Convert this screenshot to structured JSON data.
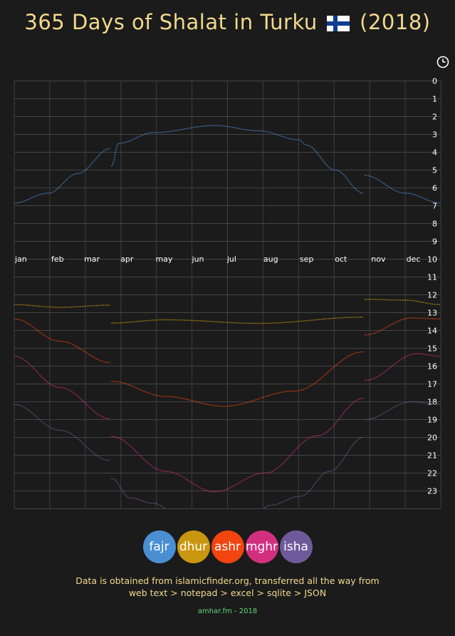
{
  "page": {
    "title_prefix": "365 Days of Shalat in Turku",
    "title_suffix": "(2018)",
    "flag_icon": "finland-flag-icon",
    "clock_icon": "clock-icon",
    "note_line1": "Data is obtained from islamicfinder.org, transferred all the way from",
    "note_line2": "web text > notepad > excel > sqlite > JSON",
    "footer": "amhar.fm - 2018"
  },
  "legend": [
    {
      "label": "fajr",
      "color": "#4a8fd4"
    },
    {
      "label": "dhur",
      "color": "#c9960f"
    },
    {
      "label": "ashr",
      "color": "#f2450f"
    },
    {
      "label": "mghr",
      "color": "#d22f80"
    },
    {
      "label": "isha",
      "color": "#6e5a9a"
    }
  ],
  "chart_data": {
    "type": "line",
    "title": "365 Days of Shalat in Turku (2018)",
    "x_unit": "day of year",
    "xlim": [
      1,
      365
    ],
    "ylim": [
      0,
      24
    ],
    "y_direction": "0 at top, 23 at bottom",
    "y_ticks": [
      0,
      1,
      2,
      3,
      4,
      5,
      6,
      7,
      8,
      9,
      10,
      11,
      12,
      13,
      14,
      15,
      16,
      17,
      18,
      19,
      20,
      21,
      22,
      23
    ],
    "month_labels": [
      "jan",
      "feb",
      "mar",
      "apr",
      "may",
      "jun",
      "jul",
      "aug",
      "sep",
      "oct",
      "nov",
      "dec"
    ],
    "month_label_days": [
      1,
      32,
      60,
      91,
      121,
      152,
      182,
      213,
      244,
      274,
      305,
      335
    ],
    "dst_shifts": [
      {
        "from_day": 84,
        "offset_hours": 0
      },
      {
        "to_day": 300,
        "offset_hours": 0
      }
    ],
    "grid": true,
    "legend_position": "bottom-center",
    "series": [
      {
        "name": "fajr",
        "color": "#4a8fd4",
        "points": [
          [
            1,
            6.85
          ],
          [
            30,
            6.3
          ],
          [
            55,
            5.2
          ],
          [
            83,
            3.8
          ],
          [
            84,
            4.8
          ],
          [
            90,
            3.5
          ],
          [
            120,
            2.9
          ],
          [
            172,
            2.5
          ],
          [
            210,
            2.8
          ],
          [
            244,
            3.3
          ],
          [
            250,
            3.6
          ],
          [
            275,
            5.0
          ],
          [
            299,
            6.3
          ],
          [
            300,
            5.3
          ],
          [
            335,
            6.3
          ],
          [
            365,
            6.85
          ]
        ]
      },
      {
        "name": "dhur",
        "color": "#c9960f",
        "points": [
          [
            1,
            12.55
          ],
          [
            40,
            12.7
          ],
          [
            83,
            12.58
          ],
          [
            84,
            13.58
          ],
          [
            130,
            13.4
          ],
          [
            210,
            13.6
          ],
          [
            299,
            13.25
          ],
          [
            300,
            12.25
          ],
          [
            335,
            12.3
          ],
          [
            365,
            12.55
          ]
        ]
      },
      {
        "name": "ashr",
        "color": "#f2450f",
        "points": [
          [
            1,
            13.35
          ],
          [
            40,
            14.6
          ],
          [
            83,
            15.8
          ],
          [
            84,
            16.85
          ],
          [
            130,
            17.7
          ],
          [
            180,
            18.25
          ],
          [
            240,
            17.4
          ],
          [
            299,
            15.2
          ],
          [
            300,
            14.25
          ],
          [
            340,
            13.3
          ],
          [
            365,
            13.35
          ]
        ]
      },
      {
        "name": "mghr",
        "color": "#d22f80",
        "points": [
          [
            1,
            15.45
          ],
          [
            40,
            17.2
          ],
          [
            83,
            18.95
          ],
          [
            84,
            19.95
          ],
          [
            130,
            21.9
          ],
          [
            172,
            23.05
          ],
          [
            215,
            22.0
          ],
          [
            260,
            19.9
          ],
          [
            299,
            17.8
          ],
          [
            300,
            16.8
          ],
          [
            345,
            15.3
          ],
          [
            365,
            15.45
          ]
        ]
      },
      {
        "name": "isha",
        "color": "#6e5a9a",
        "points": [
          [
            1,
            18.15
          ],
          [
            40,
            19.6
          ],
          [
            83,
            21.3
          ],
          [
            84,
            22.3
          ],
          [
            100,
            23.4
          ],
          [
            120,
            23.7
          ],
          [
            140,
            24.3
          ],
          [
            172,
            24.45
          ],
          [
            205,
            24.3
          ],
          [
            220,
            23.8
          ],
          [
            245,
            23.3
          ],
          [
            270,
            21.9
          ],
          [
            299,
            20.0
          ],
          [
            300,
            19.0
          ],
          [
            340,
            18.0
          ],
          [
            365,
            18.15
          ]
        ]
      }
    ]
  }
}
